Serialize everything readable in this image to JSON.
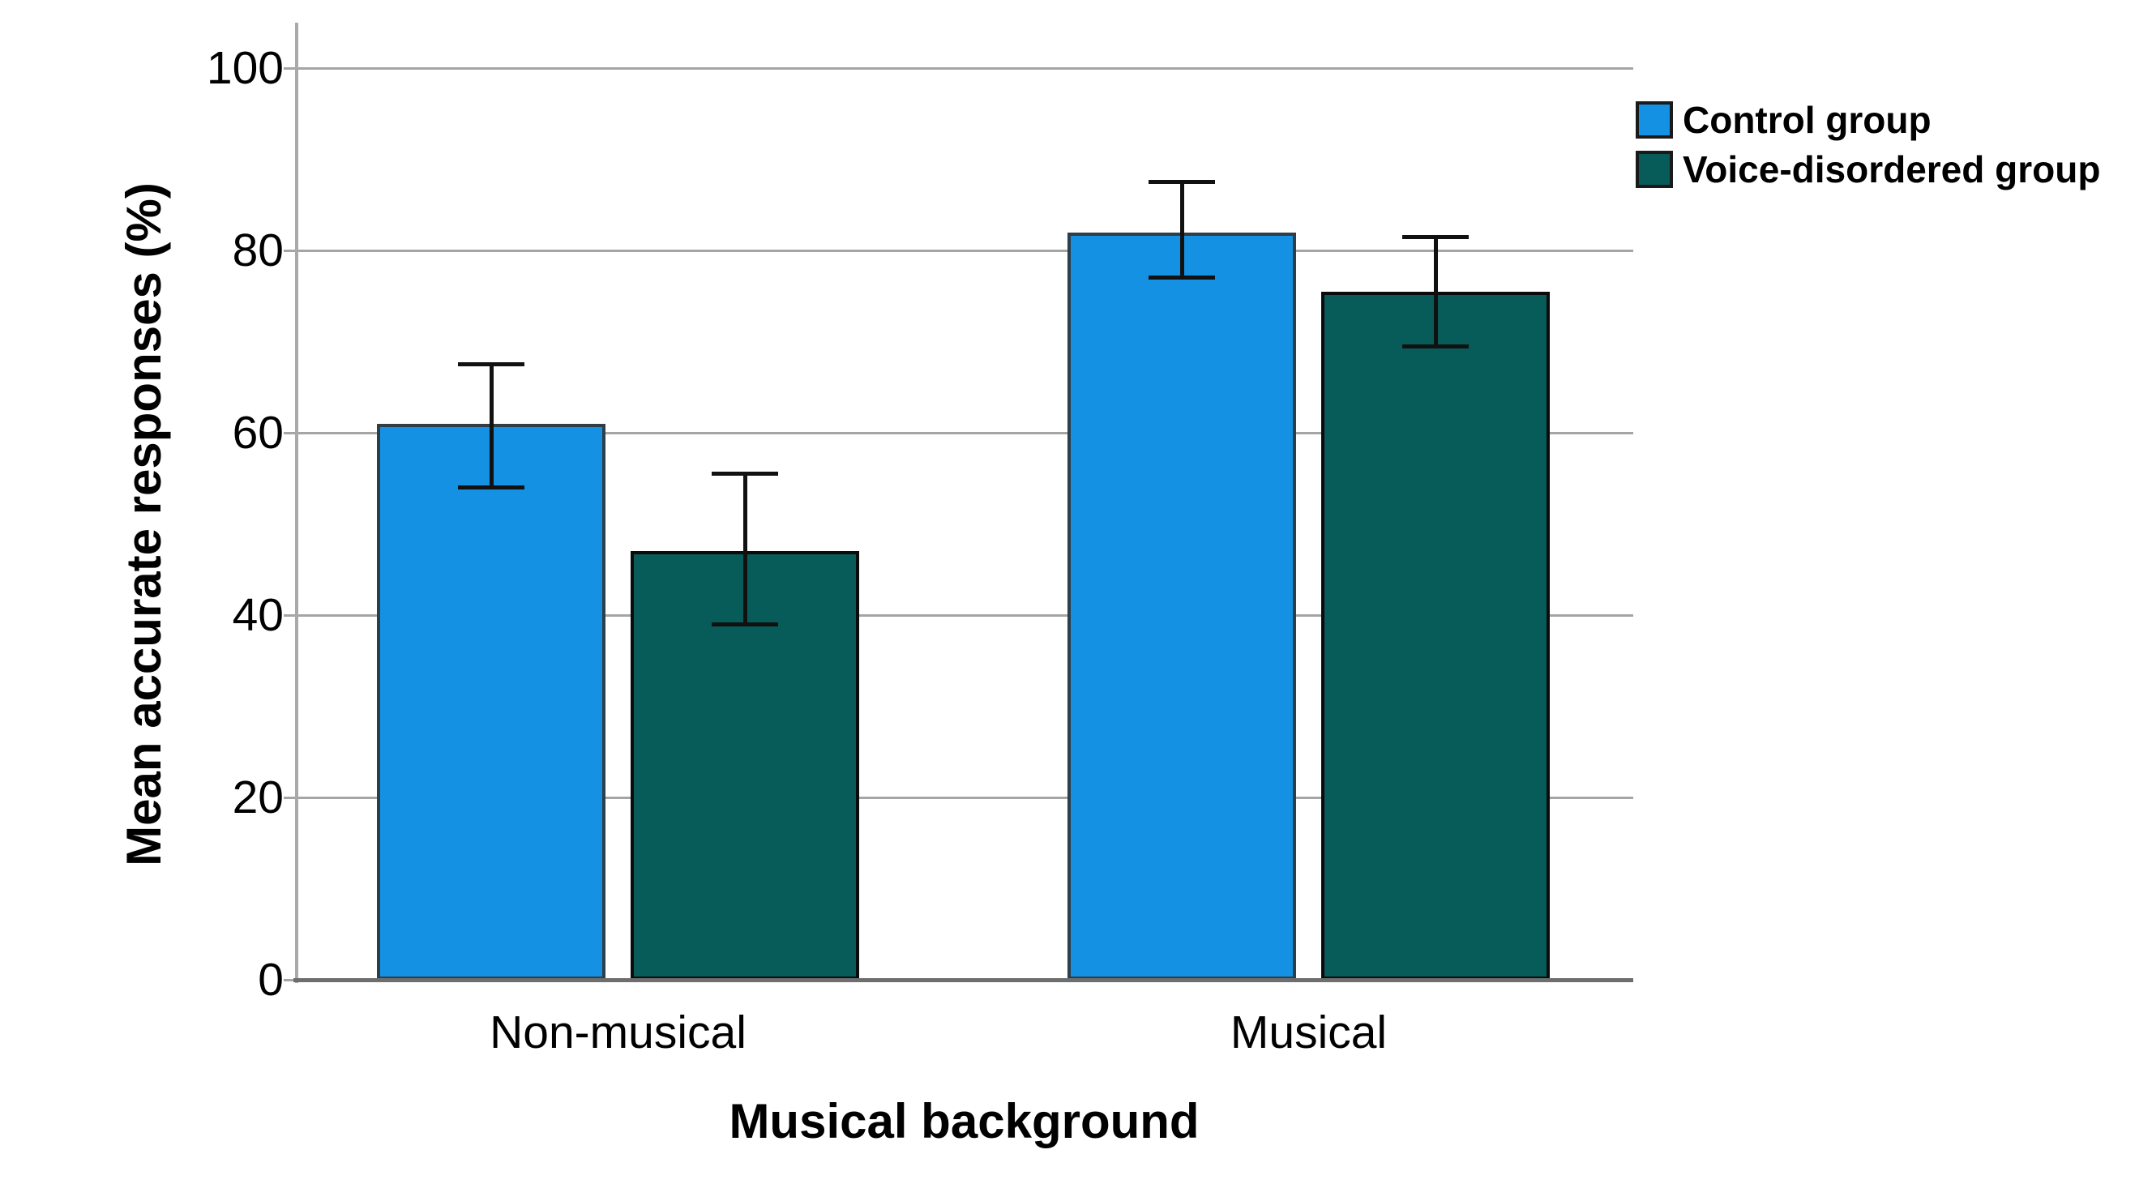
{
  "chart_data": {
    "type": "bar",
    "title": "",
    "xlabel": "Musical background",
    "ylabel": "Mean accurate responses (%)",
    "categories": [
      "Non-musical",
      "Musical"
    ],
    "series": [
      {
        "name": "Control group",
        "color": "#1591e4",
        "border_color": "#2f3e46",
        "values": [
          61,
          82
        ],
        "error_ranges": [
          [
            54,
            67.5
          ],
          [
            77,
            87.5
          ]
        ]
      },
      {
        "name": "Voice-disordered group",
        "color": "#075c59",
        "border_color": "#0b0b0b",
        "values": [
          47,
          75.5
        ],
        "error_ranges": [
          [
            39,
            55.5
          ],
          [
            69.5,
            81.5
          ]
        ]
      }
    ],
    "ylim": [
      0,
      100
    ],
    "yticks": [
      0,
      20,
      40,
      60,
      80,
      100
    ],
    "grid": true,
    "error_bars": true,
    "error_bar_color": "#111111",
    "legend_position": "top-right",
    "axis_color": "#a9a9a9",
    "gridline_color": "#a5a5a5",
    "background_color": "#ffffff"
  }
}
